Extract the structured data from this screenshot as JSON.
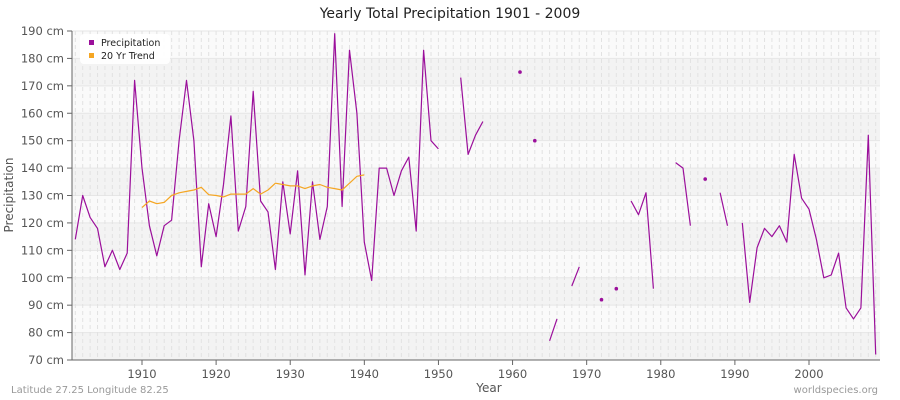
{
  "chart_data": {
    "type": "line",
    "title": "Yearly Total Precipitation 1901 - 2009",
    "xlabel": "Year",
    "ylabel": "Precipitation",
    "ylim": [
      70,
      190
    ],
    "xlim": [
      1901,
      2009
    ],
    "y_unit": "cm",
    "y_ticks": [
      70,
      80,
      90,
      100,
      110,
      120,
      130,
      140,
      150,
      160,
      170,
      180,
      190
    ],
    "y_tick_labels": [
      "70 cm",
      "80 cm",
      "90 cm",
      "100 cm",
      "110 cm",
      "120 cm",
      "130 cm",
      "140 cm",
      "150 cm",
      "160 cm",
      "170 cm",
      "180 cm",
      "190 cm"
    ],
    "x_ticks": [
      1910,
      1920,
      1930,
      1940,
      1950,
      1960,
      1970,
      1980,
      1990,
      2000
    ],
    "grid": true,
    "legend_position": "top-left",
    "series": [
      {
        "name": "Precipitation",
        "color": "#9b0f9b",
        "x_start": 1901,
        "values": [
          114,
          130,
          122,
          118,
          104,
          110,
          103,
          109,
          172,
          140,
          119,
          108,
          119,
          121,
          150,
          172,
          150,
          104,
          127,
          115,
          134,
          159,
          117,
          126,
          168,
          128,
          124,
          103,
          135,
          116,
          139,
          101,
          135,
          114,
          126,
          189,
          126,
          183,
          160,
          113,
          99,
          140,
          140,
          130,
          139,
          144,
          117,
          183,
          150,
          147,
          null,
          null,
          173,
          145,
          152,
          157,
          null,
          null,
          null,
          null,
          175,
          null,
          150,
          null,
          77,
          85,
          null,
          97,
          104,
          null,
          null,
          92,
          null,
          96,
          null,
          128,
          123,
          131,
          96,
          null,
          null,
          142,
          140,
          119,
          null,
          136,
          null,
          131,
          119,
          null,
          120,
          91,
          111,
          118,
          115,
          119,
          113,
          145,
          129,
          125,
          114,
          100,
          101,
          109,
          89,
          85,
          89,
          152,
          72
        ]
      },
      {
        "name": "20 Yr Trend",
        "color": "#f5a623",
        "x_start": 1910,
        "values": [
          125.6,
          128,
          127,
          127.5,
          130,
          131,
          131.5,
          132,
          133,
          130.3,
          130,
          129.5,
          130.5,
          130.5,
          130.5,
          132.5,
          130.5,
          132,
          134.5,
          134,
          133.5,
          133.5,
          132.5,
          133.5,
          134,
          133,
          132.5,
          132,
          134.5,
          137,
          137.5
        ]
      }
    ]
  },
  "legend": {
    "items": [
      {
        "label": "Precipitation",
        "color": "#9b0f9b"
      },
      {
        "label": "20 Yr Trend",
        "color": "#f5a623"
      }
    ]
  },
  "footer": {
    "location": "Latitude 27.25 Longitude 82.25",
    "source": "worldspecies.org"
  }
}
